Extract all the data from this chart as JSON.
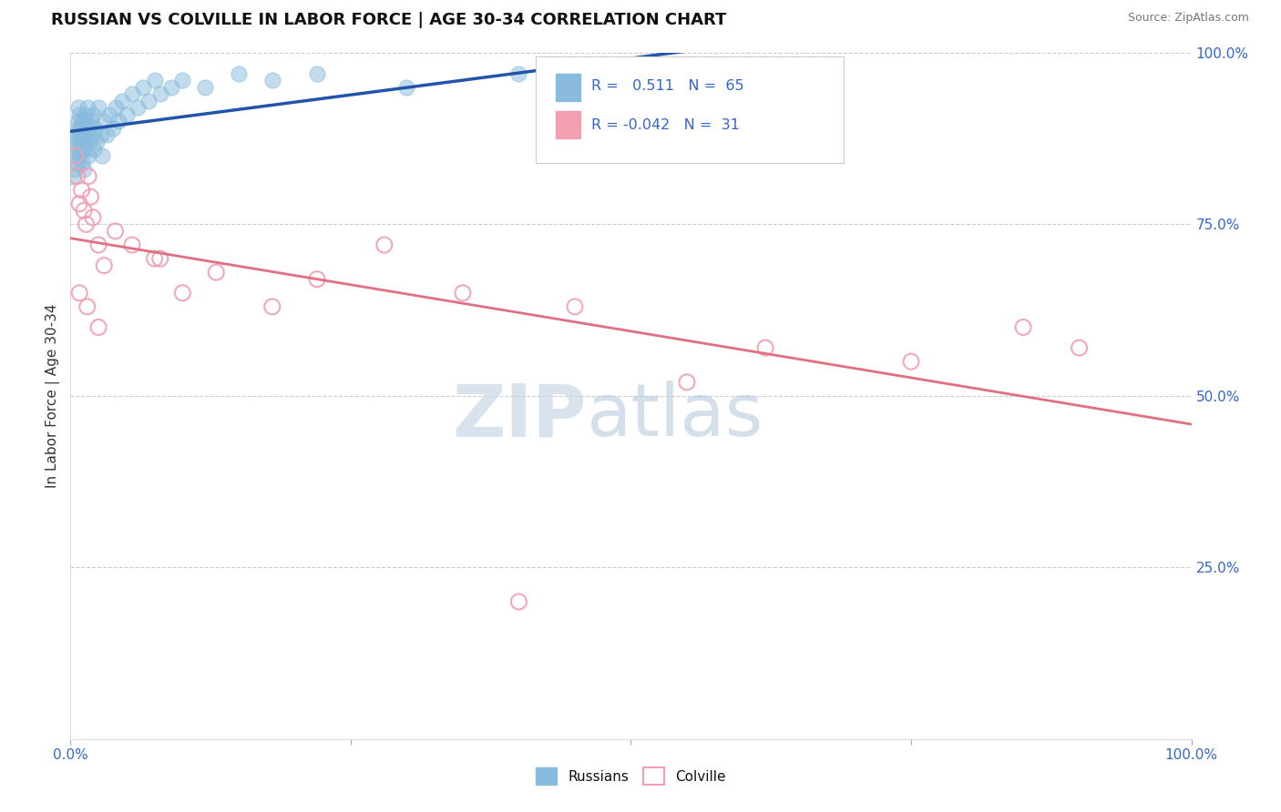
{
  "title": "RUSSIAN VS COLVILLE IN LABOR FORCE | AGE 30-34 CORRELATION CHART",
  "source": "Source: ZipAtlas.com",
  "ylabel": "In Labor Force | Age 30-34",
  "xlim": [
    0.0,
    1.0
  ],
  "ylim": [
    0.0,
    1.0
  ],
  "blue_line_color": "#2255AA",
  "pink_line_color": "#E07080",
  "blue_scatter_color": "#88BBDD",
  "pink_scatter_color": "#F0A0B0",
  "russians_x": [
    0.002,
    0.003,
    0.004,
    0.004,
    0.005,
    0.005,
    0.006,
    0.006,
    0.007,
    0.007,
    0.007,
    0.008,
    0.008,
    0.008,
    0.009,
    0.009,
    0.01,
    0.01,
    0.01,
    0.011,
    0.011,
    0.012,
    0.012,
    0.013,
    0.013,
    0.014,
    0.014,
    0.015,
    0.015,
    0.016,
    0.016,
    0.017,
    0.018,
    0.019,
    0.02,
    0.021,
    0.022,
    0.023,
    0.025,
    0.027,
    0.028,
    0.03,
    0.032,
    0.035,
    0.038,
    0.04,
    0.043,
    0.046,
    0.05,
    0.055,
    0.06,
    0.065,
    0.07,
    0.075,
    0.08,
    0.09,
    0.1,
    0.12,
    0.15,
    0.18,
    0.22,
    0.3,
    0.4,
    0.55,
    0.68
  ],
  "russians_y": [
    0.82,
    0.85,
    0.87,
    0.83,
    0.88,
    0.86,
    0.89,
    0.84,
    0.9,
    0.87,
    0.92,
    0.85,
    0.88,
    0.91,
    0.86,
    0.89,
    0.87,
    0.9,
    0.84,
    0.88,
    0.86,
    0.89,
    0.83,
    0.91,
    0.87,
    0.9,
    0.86,
    0.88,
    0.92,
    0.85,
    0.89,
    0.87,
    0.9,
    0.88,
    0.91,
    0.86,
    0.89,
    0.87,
    0.92,
    0.88,
    0.85,
    0.9,
    0.88,
    0.91,
    0.89,
    0.92,
    0.9,
    0.93,
    0.91,
    0.94,
    0.92,
    0.95,
    0.93,
    0.96,
    0.94,
    0.95,
    0.96,
    0.95,
    0.97,
    0.96,
    0.97,
    0.95,
    0.97,
    0.97,
    0.98
  ],
  "colville_x": [
    0.004,
    0.006,
    0.008,
    0.01,
    0.012,
    0.014,
    0.016,
    0.018,
    0.02,
    0.025,
    0.03,
    0.04,
    0.055,
    0.075,
    0.1,
    0.13,
    0.18,
    0.22,
    0.28,
    0.35,
    0.45,
    0.55,
    0.62,
    0.75,
    0.85,
    0.9,
    0.008,
    0.015,
    0.025,
    0.08,
    0.4
  ],
  "colville_y": [
    0.85,
    0.82,
    0.78,
    0.8,
    0.77,
    0.75,
    0.82,
    0.79,
    0.76,
    0.72,
    0.69,
    0.74,
    0.72,
    0.7,
    0.65,
    0.68,
    0.63,
    0.67,
    0.72,
    0.65,
    0.63,
    0.52,
    0.57,
    0.55,
    0.6,
    0.57,
    0.65,
    0.63,
    0.6,
    0.7,
    0.2
  ]
}
